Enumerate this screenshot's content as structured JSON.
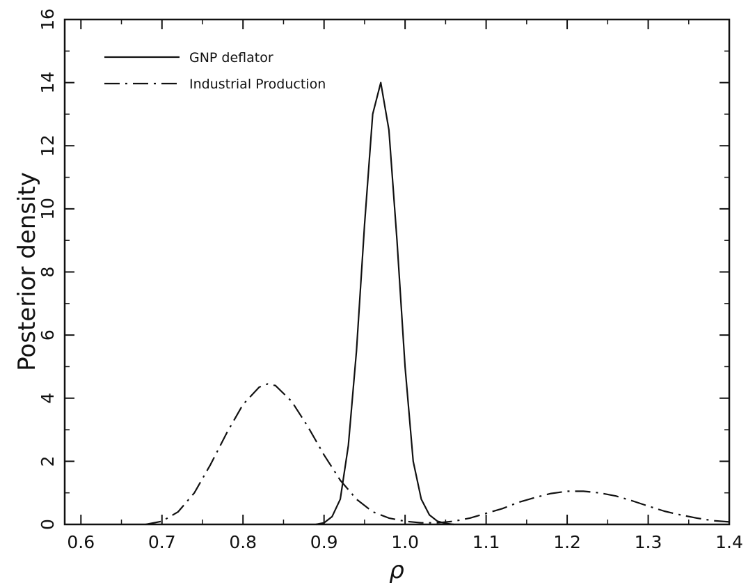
{
  "chart_data": {
    "type": "line",
    "xlabel": "ρ",
    "ylabel": "Posterior density",
    "xlim": [
      0.58,
      1.4
    ],
    "ylim": [
      0,
      16
    ],
    "x_ticks": [
      "0.6",
      "0.7",
      "0.8",
      "0.9",
      "1.0",
      "1.1",
      "1.2",
      "1.3",
      "1.4"
    ],
    "y_ticks": [
      "0",
      "2",
      "4",
      "6",
      "8",
      "10",
      "12",
      "14",
      "16"
    ],
    "legend_position": "top-left",
    "grid": false,
    "series": [
      {
        "name": "GNP deflator",
        "line_style": "solid",
        "x": [
          0.89,
          0.9,
          0.91,
          0.92,
          0.93,
          0.94,
          0.95,
          0.96,
          0.97,
          0.98,
          0.99,
          1.0,
          1.01,
          1.02,
          1.03,
          1.04,
          1.05,
          1.06
        ],
        "y": [
          0.0,
          0.05,
          0.25,
          0.8,
          2.5,
          5.5,
          9.5,
          13.0,
          14.0,
          12.5,
          9.0,
          5.0,
          2.0,
          0.8,
          0.3,
          0.1,
          0.03,
          0.0
        ]
      },
      {
        "name": "Industrial Production",
        "line_style": "dash-dot",
        "x": [
          0.68,
          0.7,
          0.72,
          0.74,
          0.76,
          0.78,
          0.8,
          0.82,
          0.83,
          0.84,
          0.86,
          0.88,
          0.9,
          0.92,
          0.94,
          0.96,
          0.98,
          1.0,
          1.02,
          1.04,
          1.06,
          1.08,
          1.1,
          1.12,
          1.14,
          1.16,
          1.18,
          1.2,
          1.22,
          1.24,
          1.26,
          1.28,
          1.3,
          1.32,
          1.34,
          1.36,
          1.38,
          1.4
        ],
        "y": [
          0.0,
          0.1,
          0.4,
          1.0,
          1.9,
          2.9,
          3.8,
          4.35,
          4.45,
          4.4,
          3.9,
          3.1,
          2.2,
          1.4,
          0.8,
          0.4,
          0.2,
          0.1,
          0.05,
          0.05,
          0.1,
          0.2,
          0.35,
          0.5,
          0.7,
          0.85,
          0.98,
          1.05,
          1.05,
          1.0,
          0.9,
          0.75,
          0.58,
          0.42,
          0.3,
          0.2,
          0.12,
          0.08
        ]
      }
    ]
  }
}
